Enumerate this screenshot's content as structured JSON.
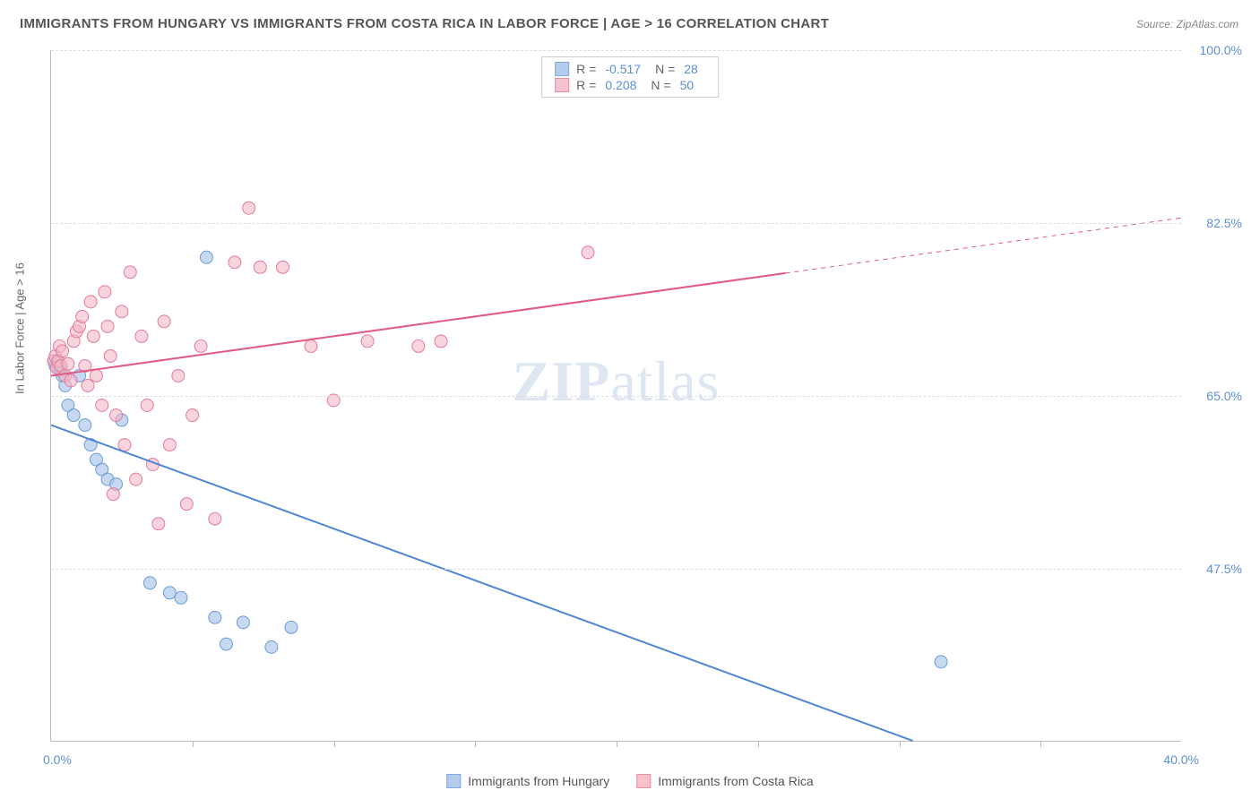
{
  "title": "IMMIGRANTS FROM HUNGARY VS IMMIGRANTS FROM COSTA RICA IN LABOR FORCE | AGE > 16 CORRELATION CHART",
  "source_label": "Source: ZipAtlas.com",
  "y_axis_title": "In Labor Force | Age > 16",
  "watermark_a": "ZIP",
  "watermark_b": "atlas",
  "chart": {
    "type": "scatter",
    "xlim": [
      0,
      40
    ],
    "ylim": [
      30,
      100
    ],
    "x_tick_positions": [
      5,
      10,
      15,
      20,
      25,
      30,
      35
    ],
    "y_grid": [
      47.5,
      65.0,
      82.5,
      100.0
    ],
    "x_min_label": "0.0%",
    "x_max_label": "40.0%",
    "y_labels": [
      "47.5%",
      "65.0%",
      "82.5%",
      "100.0%"
    ],
    "background_color": "#ffffff",
    "grid_color": "#dddddd",
    "axis_color": "#bbbbbb",
    "tick_label_color": "#5b8fd6",
    "axis_title_color": "#666666"
  },
  "series": [
    {
      "name": "Immigrants from Hungary",
      "color_fill": "#a7c4e8",
      "color_stroke": "#6a9cd8",
      "r_value": "-0.517",
      "n_value": "28",
      "marker_radius": 7,
      "marker_opacity": 0.65,
      "trend": {
        "x1": 0,
        "y1": 62,
        "x2": 30.5,
        "y2": 30,
        "dash_after_x": null,
        "color": "#4f86d1",
        "width": 2
      },
      "points": [
        [
          0.1,
          68.5
        ],
        [
          0.2,
          68.2
        ],
        [
          0.3,
          67.8
        ],
        [
          0.15,
          68.0
        ],
        [
          0.25,
          68.4
        ],
        [
          0.35,
          67.5
        ],
        [
          0.4,
          67.0
        ],
        [
          0.5,
          66.0
        ],
        [
          0.6,
          64.0
        ],
        [
          0.8,
          63.0
        ],
        [
          1.0,
          67.0
        ],
        [
          1.2,
          62.0
        ],
        [
          1.4,
          60.0
        ],
        [
          1.6,
          58.5
        ],
        [
          1.8,
          57.5
        ],
        [
          2.0,
          56.5
        ],
        [
          2.3,
          56.0
        ],
        [
          2.5,
          62.5
        ],
        [
          3.5,
          46.0
        ],
        [
          4.2,
          45.0
        ],
        [
          4.6,
          44.5
        ],
        [
          5.5,
          79.0
        ],
        [
          5.8,
          42.5
        ],
        [
          6.2,
          39.8
        ],
        [
          6.8,
          42.0
        ],
        [
          7.8,
          39.5
        ],
        [
          8.5,
          41.5
        ],
        [
          31.5,
          38.0
        ]
      ]
    },
    {
      "name": "Immigrants from Costa Rica",
      "color_fill": "#f4b8c6",
      "color_stroke": "#e37b99",
      "r_value": "0.208",
      "n_value": "50",
      "marker_radius": 7,
      "marker_opacity": 0.6,
      "trend": {
        "x1": 0,
        "y1": 67,
        "x2": 40,
        "y2": 83,
        "dash_after_x": 26,
        "color": "#e15a82",
        "width": 2
      },
      "points": [
        [
          0.1,
          68.5
        ],
        [
          0.15,
          69.0
        ],
        [
          0.2,
          67.8
        ],
        [
          0.25,
          68.5
        ],
        [
          0.3,
          70.0
        ],
        [
          0.35,
          68.0
        ],
        [
          0.4,
          69.5
        ],
        [
          0.5,
          67.0
        ],
        [
          0.6,
          68.2
        ],
        [
          0.7,
          66.5
        ],
        [
          0.8,
          70.5
        ],
        [
          0.9,
          71.5
        ],
        [
          1.0,
          72.0
        ],
        [
          1.1,
          73.0
        ],
        [
          1.2,
          68.0
        ],
        [
          1.3,
          66.0
        ],
        [
          1.4,
          74.5
        ],
        [
          1.5,
          71.0
        ],
        [
          1.6,
          67.0
        ],
        [
          1.8,
          64.0
        ],
        [
          1.9,
          75.5
        ],
        [
          2.0,
          72.0
        ],
        [
          2.1,
          69.0
        ],
        [
          2.2,
          55.0
        ],
        [
          2.3,
          63.0
        ],
        [
          2.5,
          73.5
        ],
        [
          2.6,
          60.0
        ],
        [
          2.8,
          77.5
        ],
        [
          3.0,
          56.5
        ],
        [
          3.2,
          71.0
        ],
        [
          3.4,
          64.0
        ],
        [
          3.6,
          58.0
        ],
        [
          3.8,
          52.0
        ],
        [
          4.0,
          72.5
        ],
        [
          4.2,
          60.0
        ],
        [
          4.5,
          67.0
        ],
        [
          4.8,
          54.0
        ],
        [
          5.0,
          63.0
        ],
        [
          5.3,
          70.0
        ],
        [
          5.8,
          52.5
        ],
        [
          6.5,
          78.5
        ],
        [
          7.0,
          84.0
        ],
        [
          7.4,
          78.0
        ],
        [
          8.2,
          78.0
        ],
        [
          9.2,
          70.0
        ],
        [
          10.0,
          64.5
        ],
        [
          11.2,
          70.5
        ],
        [
          13.0,
          70.0
        ],
        [
          13.8,
          70.5
        ],
        [
          19.0,
          79.5
        ]
      ]
    }
  ],
  "legend_top_row_prefix_r": "R  =",
  "legend_top_row_prefix_n": "N  =",
  "legend_bottom": [
    {
      "label": "Immigrants from Hungary",
      "fill": "#a7c4e8",
      "stroke": "#6a9cd8"
    },
    {
      "label": "Immigrants from Costa Rica",
      "fill": "#f4b8c6",
      "stroke": "#e37b99"
    }
  ]
}
